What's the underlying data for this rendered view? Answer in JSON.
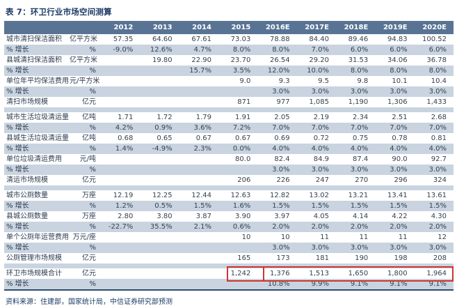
{
  "title": "表 7：环卫行业市场空间测算",
  "source_note": "资料来源：住建部，国家统计局，中信证券研究部预测",
  "colors": {
    "header_bg": "#587394",
    "header_text": "#ffffff",
    "shaded_row_bg": "#c9d4e0",
    "title_color": "#1c3c66",
    "body_text": "#33414f",
    "table_bottom_border": "#2e4d6e",
    "highlight_box": "#d0342c"
  },
  "table": {
    "columns": [
      "",
      "",
      "2012",
      "2013",
      "2014",
      "2015",
      "2016E",
      "2017E",
      "2018E",
      "2019E",
      "2020E"
    ],
    "rows": [
      {
        "label": "城市清扫保洁面积",
        "unit": "亿平方米",
        "values": [
          "57.35",
          "64.60",
          "67.61",
          "73.03",
          "78.88",
          "84.40",
          "89.46",
          "94.83",
          "100.52"
        ],
        "shaded": false
      },
      {
        "label": "% 增长",
        "unit": "%",
        "values": [
          "-9.0%",
          "12.6%",
          "4.7%",
          "8.0%",
          "8.0%",
          "7.0%",
          "6.0%",
          "6.0%",
          "6.0%"
        ],
        "shaded": true
      },
      {
        "label": "县城清扫保洁面积",
        "unit": "亿平方米",
        "values": [
          "",
          "19.80",
          "22.90",
          "23.70",
          "26.54",
          "29.20",
          "31.53",
          "34.06",
          "36.78"
        ],
        "shaded": false
      },
      {
        "label": "% 增长",
        "unit": "%",
        "values": [
          "",
          "",
          "15.7%",
          "3.5%",
          "12.0%",
          "10.0%",
          "8.0%",
          "8.0%",
          "8.0%"
        ],
        "shaded": true
      },
      {
        "label": "单位年平均保洁费用",
        "unit": "元/平方米",
        "values": [
          "",
          "",
          "",
          "9.0",
          "9.3",
          "9.5",
          "9.8",
          "10.1",
          "10.4"
        ],
        "shaded": false
      },
      {
        "label": "% 增长",
        "unit": "%",
        "values": [
          "",
          "",
          "",
          "",
          "3.0%",
          "3.0%",
          "3.0%",
          "3.0%",
          "3.0%"
        ],
        "shaded": true
      },
      {
        "label": "清扫市场规模",
        "unit": "亿元",
        "values": [
          "",
          "",
          "",
          "871",
          "977",
          "1,085",
          "1,190",
          "1,306",
          "1,433"
        ],
        "shaded": false
      },
      {
        "spacer": true
      },
      {
        "label": "城市生活垃圾清运量",
        "unit": "亿吨",
        "values": [
          "1.71",
          "1.72",
          "1.79",
          "1.91",
          "2.05",
          "2.19",
          "2.34",
          "2.51",
          "2.68"
        ],
        "shaded": false
      },
      {
        "label": "% 增长",
        "unit": "%",
        "values": [
          "4.2%",
          "0.9%",
          "3.6%",
          "7.2%",
          "7.0%",
          "7.0%",
          "7.0%",
          "7.0%",
          "7.0%"
        ],
        "shaded": true
      },
      {
        "label": "县城生活垃圾清运量",
        "unit": "亿吨",
        "values": [
          "0.68",
          "0.65",
          "0.67",
          "0.67",
          "0.69",
          "0.72",
          "0.75",
          "0.78",
          "0.81"
        ],
        "shaded": false
      },
      {
        "label": "% 增长",
        "unit": "%",
        "values": [
          "1.4%",
          "-4.9%",
          "2.3%",
          "0.0%",
          "4.0%",
          "4.0%",
          "4.0%",
          "4.0%",
          "4.0%"
        ],
        "shaded": true
      },
      {
        "label": "单位垃圾清运费用",
        "unit": "元/吨",
        "values": [
          "",
          "",
          "",
          "80.0",
          "82.4",
          "84.9",
          "87.4",
          "90.0",
          "92.7"
        ],
        "shaded": false
      },
      {
        "label": "% 增长",
        "unit": "%",
        "values": [
          "",
          "",
          "",
          "",
          "3.0%",
          "3.0%",
          "3.0%",
          "3.0%",
          "3.0%"
        ],
        "shaded": true
      },
      {
        "label": "清运市场规模",
        "unit": "亿元",
        "values": [
          "",
          "",
          "",
          "206",
          "226",
          "247",
          "270",
          "296",
          "324"
        ],
        "shaded": false
      },
      {
        "spacer": true
      },
      {
        "label": "城市公厕数量",
        "unit": "万座",
        "values": [
          "12.19",
          "12.25",
          "12.44",
          "12.63",
          "12.82",
          "13.02",
          "13.21",
          "13.41",
          "13.61"
        ],
        "shaded": false
      },
      {
        "label": "% 增长",
        "unit": "%",
        "values": [
          "1.2%",
          "0.5%",
          "1.5%",
          "1.6%",
          "1.5%",
          "1.5%",
          "1.5%",
          "1.5%",
          "1.5%"
        ],
        "shaded": true
      },
      {
        "label": "县城公厕数量",
        "unit": "万座",
        "values": [
          "2.80",
          "3.80",
          "3.87",
          "3.90",
          "3.97",
          "4.05",
          "4.14",
          "4.22",
          "4.30"
        ],
        "shaded": false
      },
      {
        "label": "% 增长",
        "unit": "%",
        "values": [
          "-22.7%",
          "35.5%",
          "2.1%",
          "0.6%",
          "2.0%",
          "2.0%",
          "2.0%",
          "2.0%",
          "2.0%"
        ],
        "shaded": true
      },
      {
        "label": "单个公厕年运营费用",
        "unit": "万元/座",
        "values": [
          "",
          "",
          "",
          "10",
          "10",
          "11",
          "11",
          "11",
          "12"
        ],
        "shaded": false
      },
      {
        "label": "% 增长",
        "unit": "%",
        "values": [
          "",
          "",
          "",
          "",
          "3.0%",
          "3.0%",
          "3.0%",
          "3.0%",
          "3.0%"
        ],
        "shaded": true
      },
      {
        "label": "公厕管理市场规模",
        "unit": "亿元",
        "values": [
          "",
          "",
          "",
          "165",
          "173",
          "181",
          "190",
          "198",
          "208"
        ],
        "shaded": false
      },
      {
        "spacer": true
      },
      {
        "label": "环卫市场规模合计",
        "unit": "亿元",
        "values": [
          "",
          "",
          "",
          "1,242",
          "1,376",
          "1,513",
          "1,650",
          "1,800",
          "1,964"
        ],
        "shaded": false,
        "highlight": true
      },
      {
        "label": "% 增长",
        "unit": "%",
        "values": [
          "",
          "",
          "",
          "",
          "10.8%",
          "9.9%",
          "9.1%",
          "9.1%",
          "9.1%"
        ],
        "shaded": true,
        "last": true
      }
    ]
  }
}
